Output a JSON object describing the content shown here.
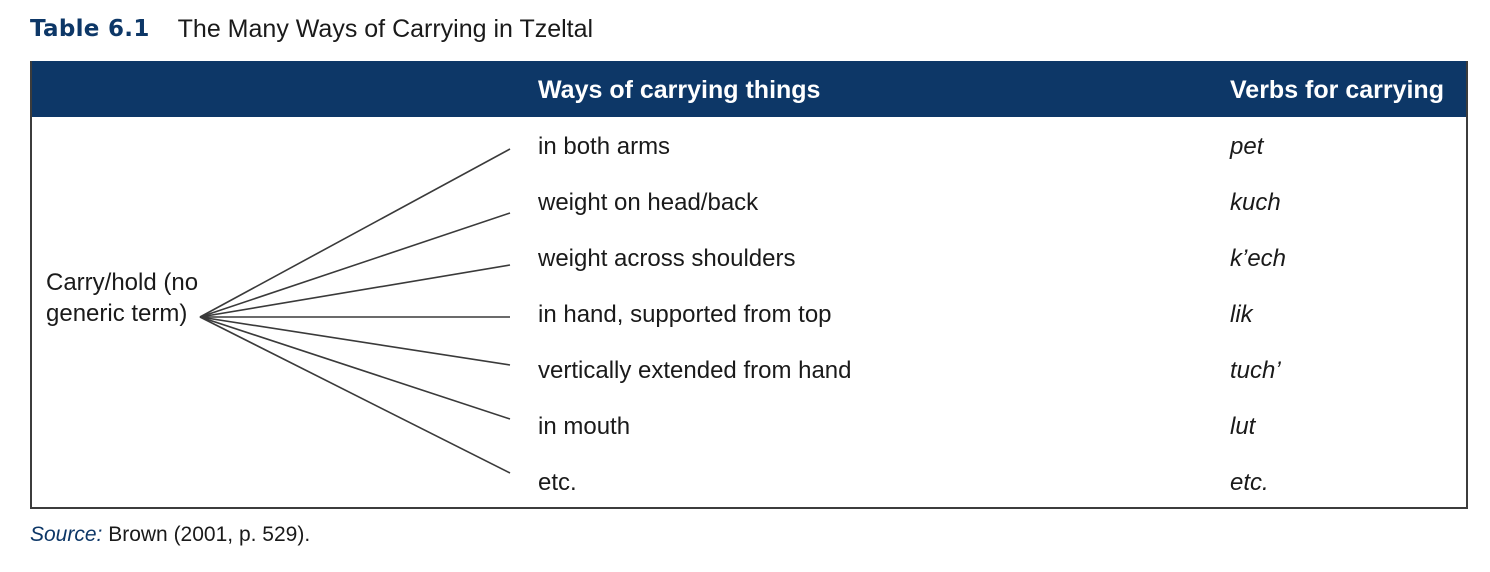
{
  "caption": {
    "label": "Table 6.1",
    "title": "The Many Ways of Carrying in Tzeltal"
  },
  "table": {
    "headers": {
      "left": "",
      "ways": "Ways of carrying things",
      "verbs": "Verbs for carrying"
    },
    "left_term": "Carry/hold (no generic term)",
    "rows": [
      {
        "way": "in both arms",
        "verb": "pet"
      },
      {
        "way": "weight on head/back",
        "verb": "kuch"
      },
      {
        "way": "weight across shoulders",
        "verb": "k’ech"
      },
      {
        "way": "in hand, supported from top",
        "verb": "lik"
      },
      {
        "way": "vertically extended from hand",
        "verb": "tuch’"
      },
      {
        "way": "in mouth",
        "verb": "lut"
      },
      {
        "way": "etc.",
        "verb": "etc."
      }
    ]
  },
  "source": {
    "label": "Source:",
    "text": " Brown (2001, p. 529)."
  },
  "colors": {
    "header_bg": "#0d3767",
    "caption_label": "#0d3767",
    "header_text": "#ffffff",
    "border": "#3c3c3c"
  }
}
